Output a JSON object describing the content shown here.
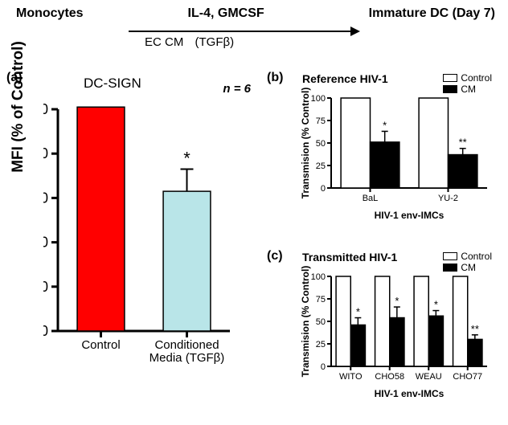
{
  "header": {
    "left": "Monocytes",
    "mid_top": "IL-4, GMCSF",
    "mid_bottom_a": "EC CM",
    "mid_bottom_b": "(TGFβ)",
    "right": "Immature DC (Day 7)"
  },
  "panel_letters": {
    "a": "(a)",
    "b": "(b)",
    "c": "(c)"
  },
  "chartA": {
    "type": "bar",
    "title": "DC-SIGN",
    "n_label": "n = 6",
    "ylabel": "MFI (% of Control)",
    "ylim": [
      0,
      100
    ],
    "ytick_step": 20,
    "bar_width": 0.55,
    "axis_width": 3,
    "tick_fontsize": 18,
    "label_fontsize": 19,
    "categories": [
      "Control",
      "Conditioned\nMedia (TGFβ)"
    ],
    "values": [
      101,
      63
    ],
    "errors": [
      0,
      10
    ],
    "sig": [
      "",
      "*"
    ],
    "bar_colors": [
      "#ff0000",
      "#b9e5e8"
    ],
    "bar_border": "#000000",
    "background_color": "#ffffff"
  },
  "chartB": {
    "type": "grouped-bar",
    "title": "Reference HIV-1",
    "ylabel": "Transmision (% Control)",
    "xlabel": "HIV-1 env-IMCs",
    "ylim": [
      0,
      100
    ],
    "ytick_step": 25,
    "axis_width": 2,
    "tick_fontsize": 11,
    "label_fontsize": 12,
    "groups": [
      "BaL",
      "YU-2"
    ],
    "series": [
      {
        "name": "Control",
        "color": "#ffffff",
        "values": [
          100,
          100
        ],
        "errors": [
          0,
          0
        ],
        "sig": [
          "",
          ""
        ]
      },
      {
        "name": "CM",
        "color": "#000000",
        "values": [
          51,
          37
        ],
        "errors": [
          12,
          7
        ],
        "sig": [
          "*",
          "**"
        ]
      }
    ],
    "legend": {
      "items": [
        {
          "label": "Control",
          "fill": "#ffffff"
        },
        {
          "label": "CM",
          "fill": "#000000"
        }
      ]
    }
  },
  "chartC": {
    "type": "grouped-bar",
    "title": "Transmitted HIV-1",
    "ylabel": "Transmision (% Control)",
    "xlabel": "HIV-1 env-IMCs",
    "ylim": [
      0,
      100
    ],
    "ytick_step": 25,
    "axis_width": 2,
    "tick_fontsize": 11,
    "label_fontsize": 12,
    "groups": [
      "WITO",
      "CHO58",
      "WEAU",
      "CHO77"
    ],
    "series": [
      {
        "name": "Control",
        "color": "#ffffff",
        "values": [
          100,
          100,
          100,
          100
        ],
        "errors": [
          0,
          0,
          0,
          0
        ],
        "sig": [
          "",
          "",
          "",
          ""
        ]
      },
      {
        "name": "CM",
        "color": "#000000",
        "values": [
          46,
          54,
          56,
          30
        ],
        "errors": [
          8,
          12,
          6,
          5
        ],
        "sig": [
          "*",
          "*",
          "*",
          "**"
        ]
      }
    ],
    "legend": {
      "items": [
        {
          "label": "Control",
          "fill": "#ffffff"
        },
        {
          "label": "CM",
          "fill": "#000000"
        }
      ]
    }
  }
}
